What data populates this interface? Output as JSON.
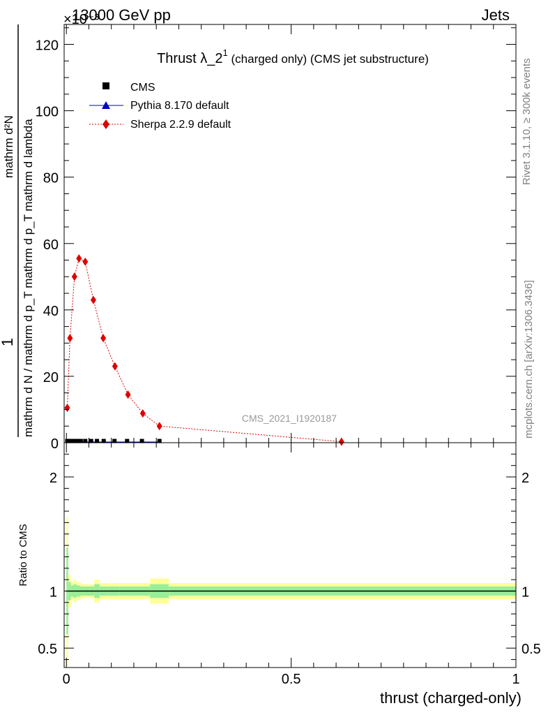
{
  "header": {
    "left": "13000 GeV pp",
    "right": "Jets",
    "multiplier": "×10⁻³"
  },
  "side_labels": {
    "rivet": "Rivet 3.1.10, ≥ 300k events",
    "mcplots": "mcplots.cern.ch [arXiv:1306.3436]"
  },
  "watermark": "CMS_2021_I1920187",
  "chart_data": [
    {
      "type": "scatter",
      "title": "Thrust λ_2¹ (charged only) (CMS jet substructure)",
      "title_main": "Thrust λ_2",
      "title_sup": "1",
      "title_rest": " (charged only) (CMS jet substructure)",
      "ylabel_numerator": "1",
      "ylabel_denominator": "mathrm d N / mathrm d p_T mathrm d p_T mathrm d lambda",
      "ylabel_top": "mathrm d²N",
      "ylim": [
        0,
        126
      ],
      "yticks": [
        0,
        20,
        40,
        60,
        80,
        100,
        120
      ],
      "xlim": [
        -0.005,
        1.0
      ],
      "log_y": false,
      "grid": false,
      "legend_position": "top-left",
      "legend": [
        {
          "label": "CMS",
          "marker": "square",
          "color": "#000000"
        },
        {
          "label": "Pythia 8.170 default",
          "marker": "triangle",
          "color": "#0000cc"
        },
        {
          "label": "Sherpa 2.2.9 default",
          "marker": "diamond",
          "color": "#dd0000"
        }
      ],
      "series": [
        {
          "name": "CMS",
          "color": "#000000",
          "x": [
            0.002,
            0.006,
            0.012,
            0.018,
            0.025,
            0.032,
            0.042,
            0.055,
            0.068,
            0.083,
            0.107,
            0.135,
            0.168,
            0.207
          ],
          "y": [
            0.3,
            0.3,
            0.3,
            0.3,
            0.3,
            0.3,
            0.3,
            0.3,
            0.3,
            0.3,
            0.3,
            0.3,
            0.3,
            0.3
          ]
        },
        {
          "name": "Pythia 8.170 default",
          "color": "#0000cc",
          "x": [
            0.002,
            0.006,
            0.012,
            0.018,
            0.025,
            0.032,
            0.042,
            0.055,
            0.068,
            0.083,
            0.107,
            0.135,
            0.168,
            0.207
          ],
          "y": [
            0.2,
            0.2,
            0.2,
            0.2,
            0.2,
            0.2,
            0.2,
            0.2,
            0.2,
            0.2,
            0.2,
            0.2,
            0.2,
            0.2
          ]
        },
        {
          "name": "Sherpa 2.2.9 default",
          "color": "#dd0000",
          "x": [
            0.002,
            0.008,
            0.018,
            0.028,
            0.042,
            0.06,
            0.082,
            0.108,
            0.137,
            0.17,
            0.207,
            0.612
          ],
          "y": [
            10.5,
            31.5,
            50.0,
            55.5,
            54.5,
            43.0,
            31.5,
            23.0,
            14.5,
            8.8,
            5.0,
            0.3
          ]
        }
      ]
    },
    {
      "type": "area",
      "ylabel": "Ratio to CMS",
      "xlabel": "thrust (charged-only)",
      "ylim": [
        0.33,
        2.3
      ],
      "yticks": [
        0.5,
        1,
        2
      ],
      "xlim": [
        -0.005,
        1.0
      ],
      "xticks": [
        0,
        0.5,
        1
      ],
      "bands": {
        "edges": [
          0.0,
          0.004,
          0.01,
          0.016,
          0.022,
          0.03,
          0.036,
          0.05,
          0.062,
          0.074,
          0.094,
          0.118,
          0.15,
          0.186,
          0.228,
          1.0
        ],
        "yellow_err": [
          0.65,
          0.14,
          0.08,
          0.1,
          0.08,
          0.07,
          0.06,
          0.06,
          0.1,
          0.07,
          0.07,
          0.07,
          0.07,
          0.11,
          0.07
        ],
        "green_err": [
          0.38,
          0.08,
          0.05,
          0.06,
          0.05,
          0.04,
          0.04,
          0.04,
          0.06,
          0.04,
          0.04,
          0.04,
          0.04,
          0.06,
          0.04
        ]
      },
      "reference_line": 1
    }
  ]
}
